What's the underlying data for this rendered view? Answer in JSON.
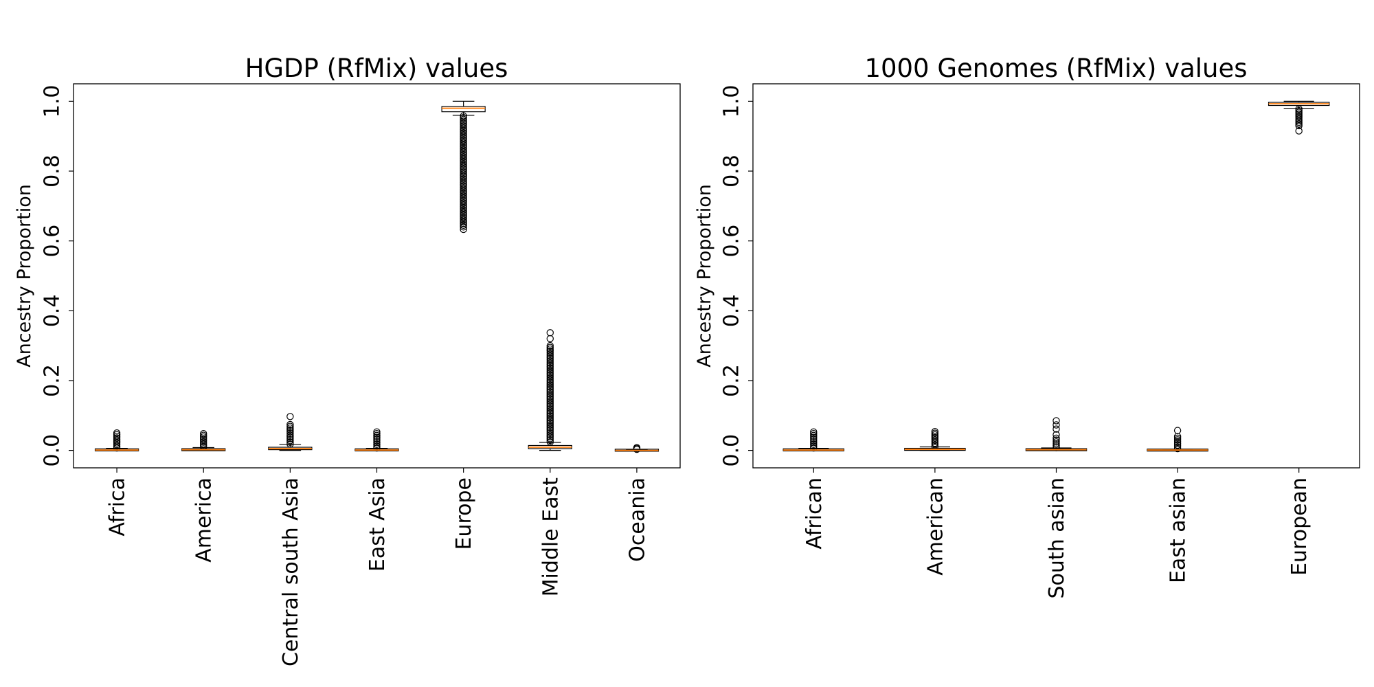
{
  "chart_data": [
    {
      "type": "boxplot",
      "title": "HGDP (RfMix) values",
      "xlabel": "",
      "ylabel": "Ancestry Proportion",
      "ylim": [
        -0.05,
        1.05
      ],
      "yticks": [
        "0.0",
        "0.2",
        "0.4",
        "0.6",
        "0.8",
        "1.0"
      ],
      "grid": false,
      "categories": [
        "Africa",
        "America",
        "Central south Asia",
        "East Asia",
        "Europe",
        "Middle East",
        "Oceania"
      ],
      "boxes": [
        {
          "category": "Africa",
          "whisker_low": 0.0,
          "q1": 0.0,
          "median": 0.001,
          "q3": 0.003,
          "whisker_high": 0.006,
          "outlier_range": [
            0.007,
            0.05
          ]
        },
        {
          "category": "America",
          "whisker_low": 0.0,
          "q1": 0.0,
          "median": 0.002,
          "q3": 0.004,
          "whisker_high": 0.008,
          "outlier_range": [
            0.009,
            0.048
          ]
        },
        {
          "category": "Central south Asia",
          "whisker_low": 0.0,
          "q1": 0.002,
          "median": 0.005,
          "q3": 0.009,
          "whisker_high": 0.017,
          "outlier_range": [
            0.018,
            0.074
          ],
          "outliers_extra": [
            0.097
          ]
        },
        {
          "category": "East Asia",
          "whisker_low": 0.0,
          "q1": 0.0,
          "median": 0.001,
          "q3": 0.003,
          "whisker_high": 0.006,
          "outlier_range": [
            0.007,
            0.053
          ]
        },
        {
          "category": "Europe",
          "whisker_low": 0.96,
          "q1": 0.97,
          "median": 0.98,
          "q3": 0.985,
          "whisker_high": 1.0,
          "outlier_range": [
            0.64,
            0.958
          ],
          "outliers_extra": [
            0.633
          ]
        },
        {
          "category": "Middle East",
          "whisker_low": 0.0,
          "q1": 0.005,
          "median": 0.009,
          "q3": 0.014,
          "whisker_high": 0.023,
          "outlier_range": [
            0.024,
            0.3
          ],
          "outliers_extra": [
            0.32,
            0.337
          ]
        },
        {
          "category": "Oceania",
          "whisker_low": 0.0,
          "q1": 0.0,
          "median": 0.0,
          "q3": 0.001,
          "whisker_high": 0.002,
          "outlier_range": [
            0.003,
            0.008
          ]
        }
      ]
    },
    {
      "type": "boxplot",
      "title": "1000 Genomes (RfMix) values",
      "xlabel": "",
      "ylabel": "Ancestry Proportion",
      "ylim": [
        -0.05,
        1.05
      ],
      "yticks": [
        "0.0",
        "0.2",
        "0.4",
        "0.6",
        "0.8",
        "1.0"
      ],
      "grid": false,
      "categories": [
        "African",
        "American",
        "South asian",
        "East asian",
        "European"
      ],
      "boxes": [
        {
          "category": "African",
          "whisker_low": 0.0,
          "q1": 0.0,
          "median": 0.001,
          "q3": 0.003,
          "whisker_high": 0.006,
          "outlier_range": [
            0.007,
            0.053
          ]
        },
        {
          "category": "American",
          "whisker_low": 0.0,
          "q1": 0.001,
          "median": 0.003,
          "q3": 0.005,
          "whisker_high": 0.01,
          "outlier_range": [
            0.011,
            0.054
          ]
        },
        {
          "category": "South asian",
          "whisker_low": 0.0,
          "q1": 0.0,
          "median": 0.002,
          "q3": 0.004,
          "whisker_high": 0.007,
          "outlier_range": [
            0.008,
            0.035
          ],
          "outliers_extra": [
            0.045,
            0.061,
            0.073,
            0.085
          ]
        },
        {
          "category": "East asian",
          "whisker_low": 0.0,
          "q1": 0.0,
          "median": 0.001,
          "q3": 0.002,
          "whisker_high": 0.004,
          "outlier_range": [
            0.005,
            0.04
          ],
          "outliers_extra": [
            0.057
          ]
        },
        {
          "category": "European",
          "whisker_low": 0.98,
          "q1": 0.988,
          "median": 0.993,
          "q3": 0.997,
          "whisker_high": 1.0,
          "outlier_range": [
            0.93,
            0.978
          ],
          "outliers_extra": [
            0.915
          ]
        }
      ]
    }
  ],
  "colors": {
    "median": "#ff7f0e",
    "box_edge": "#000000",
    "flier_edge": "#000000",
    "background": "#ffffff"
  }
}
